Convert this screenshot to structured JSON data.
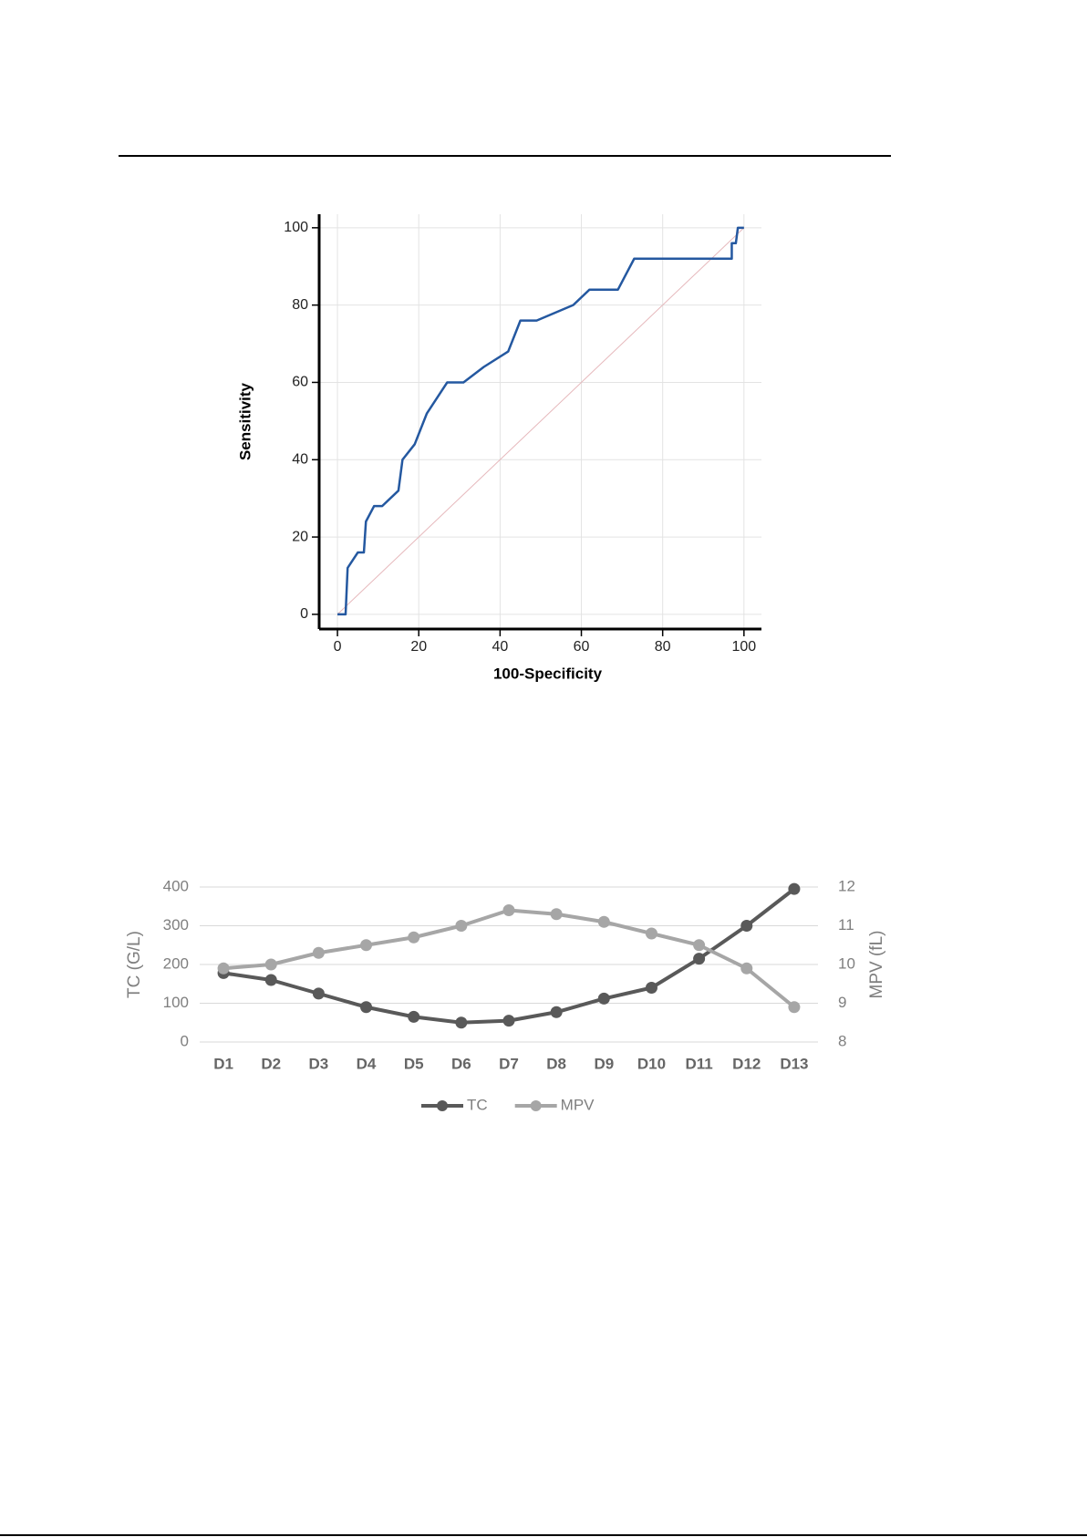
{
  "chart_data": [
    {
      "type": "line",
      "xlabel": "100-Specificity",
      "ylabel": "Sensitivity",
      "x": [
        0,
        2,
        2.5,
        5,
        6.5,
        7,
        9,
        11,
        15,
        16,
        19,
        22,
        27,
        31,
        36,
        42,
        45,
        49,
        58,
        62,
        69,
        71,
        73,
        97,
        97,
        98,
        98.5,
        100
      ],
      "series": [
        {
          "color": "#2458a0",
          "values": [
            0,
            0,
            12,
            16,
            16,
            24,
            28,
            28,
            32,
            40,
            44,
            52,
            60,
            60,
            64,
            68,
            76,
            76,
            80,
            84,
            84,
            88,
            92,
            92,
            96,
            96,
            100,
            100
          ]
        }
      ],
      "reference_line": {
        "x": [
          0,
          100
        ],
        "y": [
          0,
          100
        ],
        "color": "#e6b8bc"
      },
      "xlim": [
        -4.5,
        104.3
      ],
      "ylim": [
        -3.8,
        103.5
      ],
      "xticks": [
        0,
        20,
        40,
        60,
        80,
        100
      ],
      "yticks": [
        0,
        20,
        40,
        60,
        80,
        100
      ],
      "grid": true
    },
    {
      "type": "line",
      "ylabel": "TC (G/L)",
      "y2label": "MPV (fL)",
      "categories": [
        "D1",
        "D2",
        "D3",
        "D4",
        "D5",
        "D6",
        "D7",
        "D8",
        "D9",
        "D10",
        "D11",
        "D12",
        "D13"
      ],
      "series": [
        {
          "name": "TC",
          "color": "#595959",
          "values": [
            178,
            160,
            125,
            90,
            65,
            50,
            55,
            77,
            112,
            140,
            215,
            300,
            395
          ]
        },
        {
          "name": "MPV",
          "color": "#a6a6a6",
          "axis": "y2",
          "values": [
            9.9,
            10,
            10.3,
            10.5,
            10.7,
            11,
            11.4,
            11.3,
            11.1,
            10.8,
            10.5,
            9.9,
            8.9
          ]
        }
      ],
      "ylim": [
        0,
        400
      ],
      "yticks": [
        0,
        100,
        200,
        300,
        400
      ],
      "y2lim": [
        8,
        12
      ],
      "y2ticks": [
        8,
        9,
        10,
        11,
        12
      ],
      "grid": true,
      "legend": "bottom"
    }
  ]
}
